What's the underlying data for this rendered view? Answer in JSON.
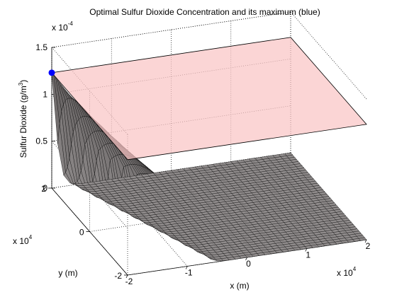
{
  "chart_data": {
    "type": "surface",
    "title": "Optimal Sulfur Dioxide Concentration and its maximum (blue)",
    "xlabel": "x (m)",
    "ylabel": "y (m)",
    "zlabel_main": "Sulfur Dioxide (g/m",
    "zlabel_sup": "3",
    "zlabel_end": ")",
    "x_ticks": [
      "-2",
      "-1",
      "0",
      "1",
      "2"
    ],
    "y_ticks": [
      "-2",
      "0",
      "2"
    ],
    "z_ticks": [
      "0",
      "0.5",
      "1",
      "1.5"
    ],
    "x_exponent_base": "x 10",
    "x_exponent_pow": "4",
    "y_exponent_base": "x 10",
    "y_exponent_pow": "4",
    "z_exponent_base": "x 10",
    "z_exponent_pow": "-4",
    "xlim": [
      -20000,
      20000
    ],
    "ylim": [
      -20000,
      20000
    ],
    "zlim": [
      0,
      0.00015
    ],
    "grid": true,
    "plane_level": 0.000123,
    "maximum_point": {
      "x": -20000,
      "y": 20000,
      "z": 0.000123
    },
    "surface_color": "#8f8b8b",
    "plane_color": "#f9c5c5",
    "marker_color": "#0000ff"
  }
}
